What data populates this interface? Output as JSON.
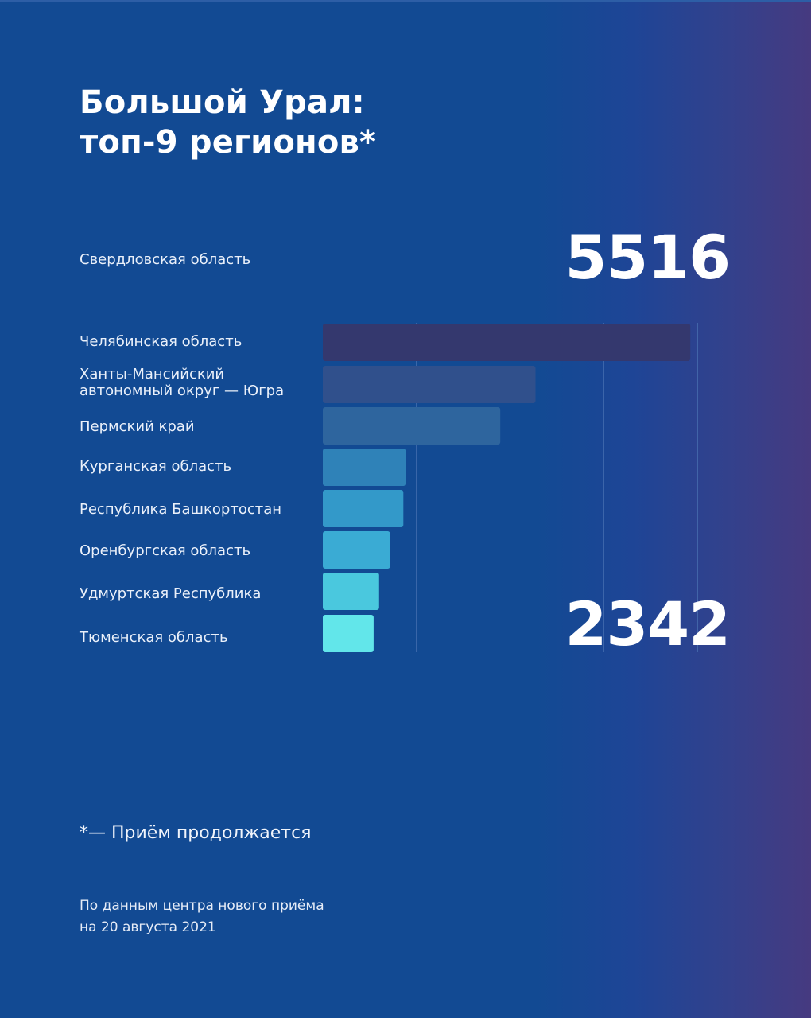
{
  "title_lines": [
    "Большой Урал:",
    "топ-9 регионов*"
  ],
  "regions": [
    "Свердловская область",
    "Челябинская область",
    "Ханты-Мансийский автономный округ — Югра",
    "Пермский край",
    "Курганская область",
    "Республика Башкортостан",
    "Оренбургская область",
    "Удмуртская Республика",
    "Тюменская область"
  ],
  "hmao_label_lines": [
    "Ханты-Мансийский",
    "автономный округ — Югра"
  ],
  "highlight_top": {
    "region": "Свердловская область",
    "value": "5516"
  },
  "highlight_value_2": "2342",
  "footnote": "*— Приём продолжается",
  "source_lines": [
    "По данным центра нового приёма",
    "на 20 августа 2021"
  ],
  "colors": {
    "background": "#124a93",
    "background_right": "#463a80",
    "gridline": "#4a73b3"
  },
  "chart_data": {
    "type": "bar",
    "orientation": "horizontal",
    "categories": [
      "Челябинская область",
      "Ханты-Мансийский автономный округ — Югра",
      "Пермский край",
      "Курганская область",
      "Республика Башкортостан",
      "Оренбургская область",
      "Удмуртская Республика",
      "Тюменская область"
    ],
    "values": [
      4700,
      2720,
      2270,
      1060,
      1030,
      860,
      720,
      650
    ],
    "xlim": [
      0,
      4800
    ],
    "grid": true,
    "bar_colors": [
      "#34386e",
      "#30508c",
      "#2e659e",
      "#2f82b8",
      "#3399c9",
      "#3aabd4",
      "#4ac8de",
      "#62e6ea"
    ]
  }
}
